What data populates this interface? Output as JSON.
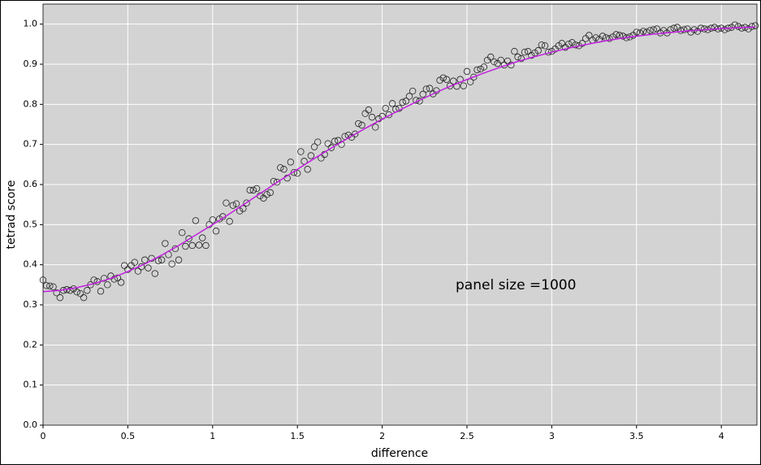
{
  "chart_data": {
    "type": "scatter",
    "xlabel": "difference",
    "ylabel": "tetrad score",
    "annotation": "panel size =1000",
    "xlim": [
      0,
      4.21
    ],
    "ylim": [
      0,
      1.05
    ],
    "xticks": [
      0,
      0.5,
      1,
      1.5,
      2,
      2.5,
      3,
      3.5,
      4
    ],
    "yticks": [
      {
        "value": 0,
        "label": "0.0"
      },
      0.1,
      0.2,
      0.3,
      0.4,
      0.5,
      0.6,
      0.7,
      0.8,
      0.9,
      {
        "value": 1,
        "label": "1.0"
      }
    ],
    "grid": true,
    "background": "#d3d3d3",
    "point_color": "#222222",
    "x": [
      0,
      0.02,
      0.04,
      0.06,
      0.08,
      0.1,
      0.12,
      0.14,
      0.16,
      0.18,
      0.2,
      0.22,
      0.24,
      0.26,
      0.28,
      0.3,
      0.32,
      0.34,
      0.36,
      0.38,
      0.4,
      0.42,
      0.44,
      0.46,
      0.48,
      0.5,
      0.52,
      0.54,
      0.56,
      0.58,
      0.6,
      0.62,
      0.64,
      0.66,
      0.68,
      0.7,
      0.72,
      0.74,
      0.76,
      0.78,
      0.8,
      0.82,
      0.84,
      0.86,
      0.88,
      0.9,
      0.92,
      0.94,
      0.96,
      0.98,
      1,
      1.02,
      1.04,
      1.06,
      1.08,
      1.1,
      1.12,
      1.14,
      1.16,
      1.18,
      1.2,
      1.22,
      1.24,
      1.26,
      1.28,
      1.3,
      1.32,
      1.34,
      1.36,
      1.38,
      1.4,
      1.42,
      1.44,
      1.46,
      1.48,
      1.5,
      1.52,
      1.54,
      1.56,
      1.58,
      1.6,
      1.62,
      1.64,
      1.66,
      1.68,
      1.7,
      1.72,
      1.74,
      1.76,
      1.78,
      1.8,
      1.82,
      1.84,
      1.86,
      1.88,
      1.9,
      1.92,
      1.94,
      1.96,
      1.98,
      2,
      2.02,
      2.04,
      2.06,
      2.08,
      2.1,
      2.12,
      2.14,
      2.16,
      2.18,
      2.2,
      2.22,
      2.24,
      2.26,
      2.28,
      2.3,
      2.32,
      2.34,
      2.36,
      2.38,
      2.4,
      2.42,
      2.44,
      2.46,
      2.48,
      2.5,
      2.52,
      2.54,
      2.56,
      2.58,
      2.6,
      2.62,
      2.64,
      2.66,
      2.68,
      2.7,
      2.72,
      2.74,
      2.76,
      2.78,
      2.8,
      2.82,
      2.84,
      2.86,
      2.88,
      2.9,
      2.92,
      2.94,
      2.96,
      2.98,
      3,
      3.02,
      3.04,
      3.06,
      3.08,
      3.1,
      3.12,
      3.14,
      3.16,
      3.18,
      3.2,
      3.22,
      3.24,
      3.26,
      3.28,
      3.3,
      3.32,
      3.34,
      3.36,
      3.38,
      3.4,
      3.42,
      3.44,
      3.46,
      3.48,
      3.5,
      3.52,
      3.54,
      3.56,
      3.58,
      3.6,
      3.62,
      3.64,
      3.66,
      3.68,
      3.7,
      3.72,
      3.74,
      3.76,
      3.78,
      3.8,
      3.82,
      3.84,
      3.86,
      3.88,
      3.9,
      3.92,
      3.94,
      3.96,
      3.98,
      4,
      4.02,
      4.04,
      4.06,
      4.08,
      4.1,
      4.12,
      4.14,
      4.16,
      4.18,
      4.2
    ],
    "values": [
      0.362,
      0.348,
      0.347,
      0.345,
      0.33,
      0.318,
      0.336,
      0.338,
      0.336,
      0.34,
      0.332,
      0.328,
      0.318,
      0.336,
      0.35,
      0.362,
      0.358,
      0.334,
      0.366,
      0.35,
      0.372,
      0.364,
      0.367,
      0.356,
      0.398,
      0.388,
      0.398,
      0.406,
      0.384,
      0.395,
      0.412,
      0.392,
      0.416,
      0.378,
      0.41,
      0.412,
      0.453,
      0.425,
      0.402,
      0.44,
      0.412,
      0.48,
      0.446,
      0.465,
      0.448,
      0.51,
      0.449,
      0.467,
      0.448,
      0.5,
      0.512,
      0.484,
      0.514,
      0.52,
      0.554,
      0.508,
      0.548,
      0.552,
      0.534,
      0.54,
      0.554,
      0.586,
      0.586,
      0.59,
      0.572,
      0.566,
      0.575,
      0.58,
      0.608,
      0.606,
      0.642,
      0.638,
      0.616,
      0.656,
      0.63,
      0.628,
      0.682,
      0.658,
      0.638,
      0.672,
      0.694,
      0.706,
      0.666,
      0.675,
      0.702,
      0.692,
      0.708,
      0.71,
      0.7,
      0.72,
      0.723,
      0.718,
      0.726,
      0.752,
      0.748,
      0.777,
      0.786,
      0.768,
      0.743,
      0.764,
      0.77,
      0.79,
      0.774,
      0.802,
      0.788,
      0.79,
      0.805,
      0.808,
      0.82,
      0.833,
      0.81,
      0.808,
      0.825,
      0.838,
      0.84,
      0.826,
      0.834,
      0.86,
      0.866,
      0.862,
      0.846,
      0.858,
      0.845,
      0.862,
      0.846,
      0.882,
      0.856,
      0.868,
      0.886,
      0.888,
      0.893,
      0.91,
      0.918,
      0.906,
      0.902,
      0.91,
      0.898,
      0.908,
      0.898,
      0.932,
      0.918,
      0.914,
      0.93,
      0.932,
      0.922,
      0.928,
      0.934,
      0.948,
      0.946,
      0.93,
      0.932,
      0.938,
      0.946,
      0.952,
      0.942,
      0.95,
      0.954,
      0.948,
      0.946,
      0.952,
      0.964,
      0.972,
      0.96,
      0.966,
      0.962,
      0.97,
      0.966,
      0.964,
      0.968,
      0.974,
      0.972,
      0.97,
      0.966,
      0.968,
      0.972,
      0.98,
      0.978,
      0.982,
      0.98,
      0.984,
      0.986,
      0.988,
      0.978,
      0.984,
      0.978,
      0.986,
      0.99,
      0.992,
      0.984,
      0.986,
      0.988,
      0.98,
      0.986,
      0.982,
      0.99,
      0.988,
      0.986,
      0.99,
      0.992,
      0.988,
      0.99,
      0.986,
      0.99,
      0.992,
      0.998,
      0.994,
      0.99,
      0.992,
      0.988,
      0.994,
      0.996
    ],
    "fit_line": {
      "color": "#c21fe0",
      "x": [
        0,
        0.1,
        0.2,
        0.3,
        0.4,
        0.5,
        0.6,
        0.7,
        0.8,
        0.9,
        1,
        1.1,
        1.2,
        1.3,
        1.4,
        1.5,
        1.6,
        1.7,
        1.8,
        1.9,
        2,
        2.1,
        2.2,
        2.3,
        2.4,
        2.5,
        2.6,
        2.7,
        2.8,
        2.9,
        3,
        3.1,
        3.2,
        3.3,
        3.4,
        3.5,
        3.6,
        3.7,
        3.8,
        3.9,
        4,
        4.1,
        4.2
      ],
      "values": [
        0.333,
        0.336,
        0.343,
        0.353,
        0.366,
        0.383,
        0.402,
        0.424,
        0.448,
        0.474,
        0.5,
        0.527,
        0.555,
        0.583,
        0.611,
        0.638,
        0.665,
        0.691,
        0.716,
        0.74,
        0.763,
        0.785,
        0.806,
        0.826,
        0.845,
        0.862,
        0.878,
        0.893,
        0.907,
        0.919,
        0.93,
        0.94,
        0.949,
        0.957,
        0.964,
        0.97,
        0.975,
        0.979,
        0.983,
        0.986,
        0.989,
        0.991,
        0.993
      ]
    }
  }
}
